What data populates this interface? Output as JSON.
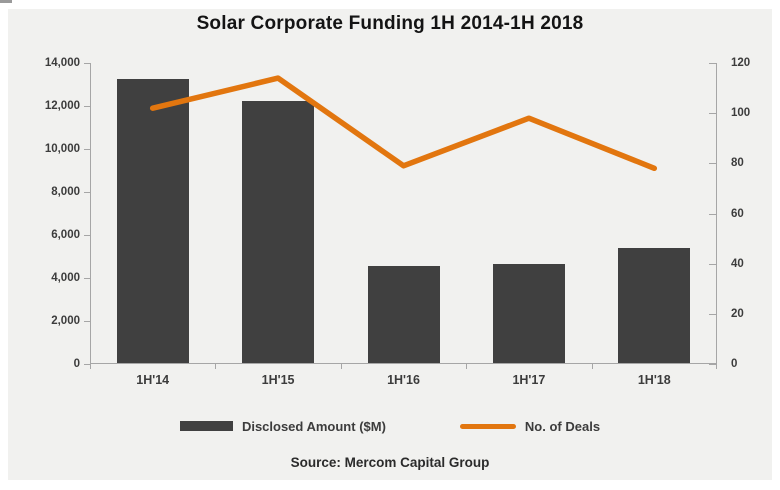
{
  "chart_data": {
    "type": "bar",
    "subtype": "combo-bar-line-dual-axis",
    "title": "Solar Corporate Funding 1H 2014-1H 2018",
    "categories": [
      "1H'14",
      "1H'15",
      "1H'16",
      "1H'17",
      "1H'18"
    ],
    "series": [
      {
        "name": "Disclosed Amount ($M)",
        "type": "bar",
        "axis": "left",
        "color": "#404040",
        "values": [
          13200,
          12200,
          4500,
          4600,
          5350
        ]
      },
      {
        "name": "No. of Deals",
        "type": "line",
        "axis": "right",
        "color": "#e2760f",
        "values": [
          102,
          114,
          79,
          98,
          78
        ]
      }
    ],
    "left_axis": {
      "min": 0,
      "max": 14000,
      "step": 2000,
      "tick_labels": [
        "0",
        "2,000",
        "4,000",
        "6,000",
        "8,000",
        "10,000",
        "12,000",
        "14,000"
      ]
    },
    "right_axis": {
      "min": 0,
      "max": 120,
      "step": 20,
      "tick_labels": [
        "0",
        "20",
        "40",
        "60",
        "80",
        "100",
        "120"
      ]
    },
    "grid": false,
    "legend_position": "bottom"
  },
  "source_note": "Source: Mercom Capital Group",
  "colors": {
    "chart_background": "#f1f1ef",
    "page_background": "#ffffff",
    "axis_line": "#a6a6a6",
    "tick_text": "#3c3c3c",
    "title_text": "#141414",
    "bar": "#404040",
    "line": "#e2760f"
  }
}
